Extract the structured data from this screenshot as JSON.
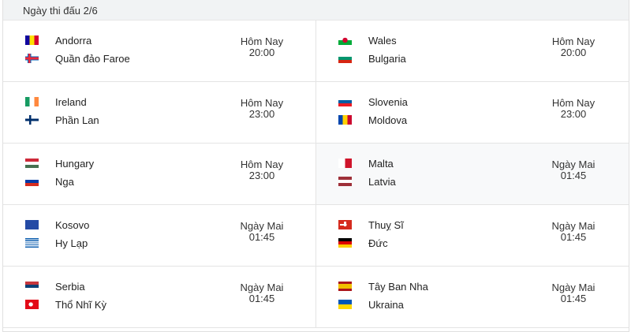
{
  "header": {
    "title": "Ngày thi đấu 2/6"
  },
  "matches": [
    {
      "home": {
        "name": "Andorra",
        "flag": [
          "#10069f",
          "#fedf00",
          "#d50032"
        ],
        "dir": "v"
      },
      "away": {
        "name": "Quần đảo Faroe",
        "flag": "faroe"
      },
      "day": "Hôm Nay",
      "time": "20:00"
    },
    {
      "home": {
        "name": "Wales",
        "flag": "wales"
      },
      "away": {
        "name": "Bulgaria",
        "flag": [
          "#ffffff",
          "#00966e",
          "#d62612"
        ],
        "dir": "h"
      },
      "day": "Hôm Nay",
      "time": "20:00"
    },
    {
      "home": {
        "name": "Ireland",
        "flag": [
          "#169b62",
          "#ffffff",
          "#ff883e"
        ],
        "dir": "v"
      },
      "away": {
        "name": "Phần Lan",
        "flag": "finland"
      },
      "day": "Hôm Nay",
      "time": "23:00"
    },
    {
      "home": {
        "name": "Slovenia",
        "flag": [
          "#ffffff",
          "#005da4",
          "#ed1c24"
        ],
        "dir": "h"
      },
      "away": {
        "name": "Moldova",
        "flag": [
          "#0046ae",
          "#ffd200",
          "#cc092f"
        ],
        "dir": "v"
      },
      "day": "Hôm Nay",
      "time": "23:00"
    },
    {
      "home": {
        "name": "Hungary",
        "flag": [
          "#ce2939",
          "#ffffff",
          "#477050"
        ],
        "dir": "h"
      },
      "away": {
        "name": "Nga",
        "flag": [
          "#ffffff",
          "#0039a6",
          "#d52b1e"
        ],
        "dir": "h"
      },
      "day": "Hôm Nay",
      "time": "23:00"
    },
    {
      "home": {
        "name": "Malta",
        "flag": [
          "#ffffff",
          "#cf142b"
        ],
        "dir": "v"
      },
      "away": {
        "name": "Latvia",
        "flag": [
          "#9e3039",
          "#ffffff",
          "#9e3039"
        ],
        "dir": "h"
      },
      "day": "Ngày Mai",
      "time": "01:45",
      "highlight": true
    },
    {
      "home": {
        "name": "Kosovo",
        "flag": [
          "#244aa5"
        ],
        "dir": "h"
      },
      "away": {
        "name": "Hy Lạp",
        "flag": "greece"
      },
      "day": "Ngày Mai",
      "time": "01:45"
    },
    {
      "home": {
        "name": "Thuỵ Sĩ",
        "flag": "swiss"
      },
      "away": {
        "name": "Đức",
        "flag": [
          "#000000",
          "#dd0000",
          "#ffce00"
        ],
        "dir": "h"
      },
      "day": "Ngày Mai",
      "time": "01:45"
    },
    {
      "home": {
        "name": "Serbia",
        "flag": [
          "#c6363c",
          "#0c4076",
          "#ffffff"
        ],
        "dir": "h"
      },
      "away": {
        "name": "Thổ Nhĩ Kỳ",
        "flag": "turkey"
      },
      "day": "Ngày Mai",
      "time": "01:45"
    },
    {
      "home": {
        "name": "Tây Ban Nha",
        "flag": [
          "#aa151b",
          "#f1bf00",
          "#f1bf00",
          "#aa151b"
        ],
        "dir": "h"
      },
      "away": {
        "name": "Ukraina",
        "flag": [
          "#0057b7",
          "#ffd700"
        ],
        "dir": "h"
      },
      "day": "Ngày Mai",
      "time": "01:45"
    }
  ]
}
